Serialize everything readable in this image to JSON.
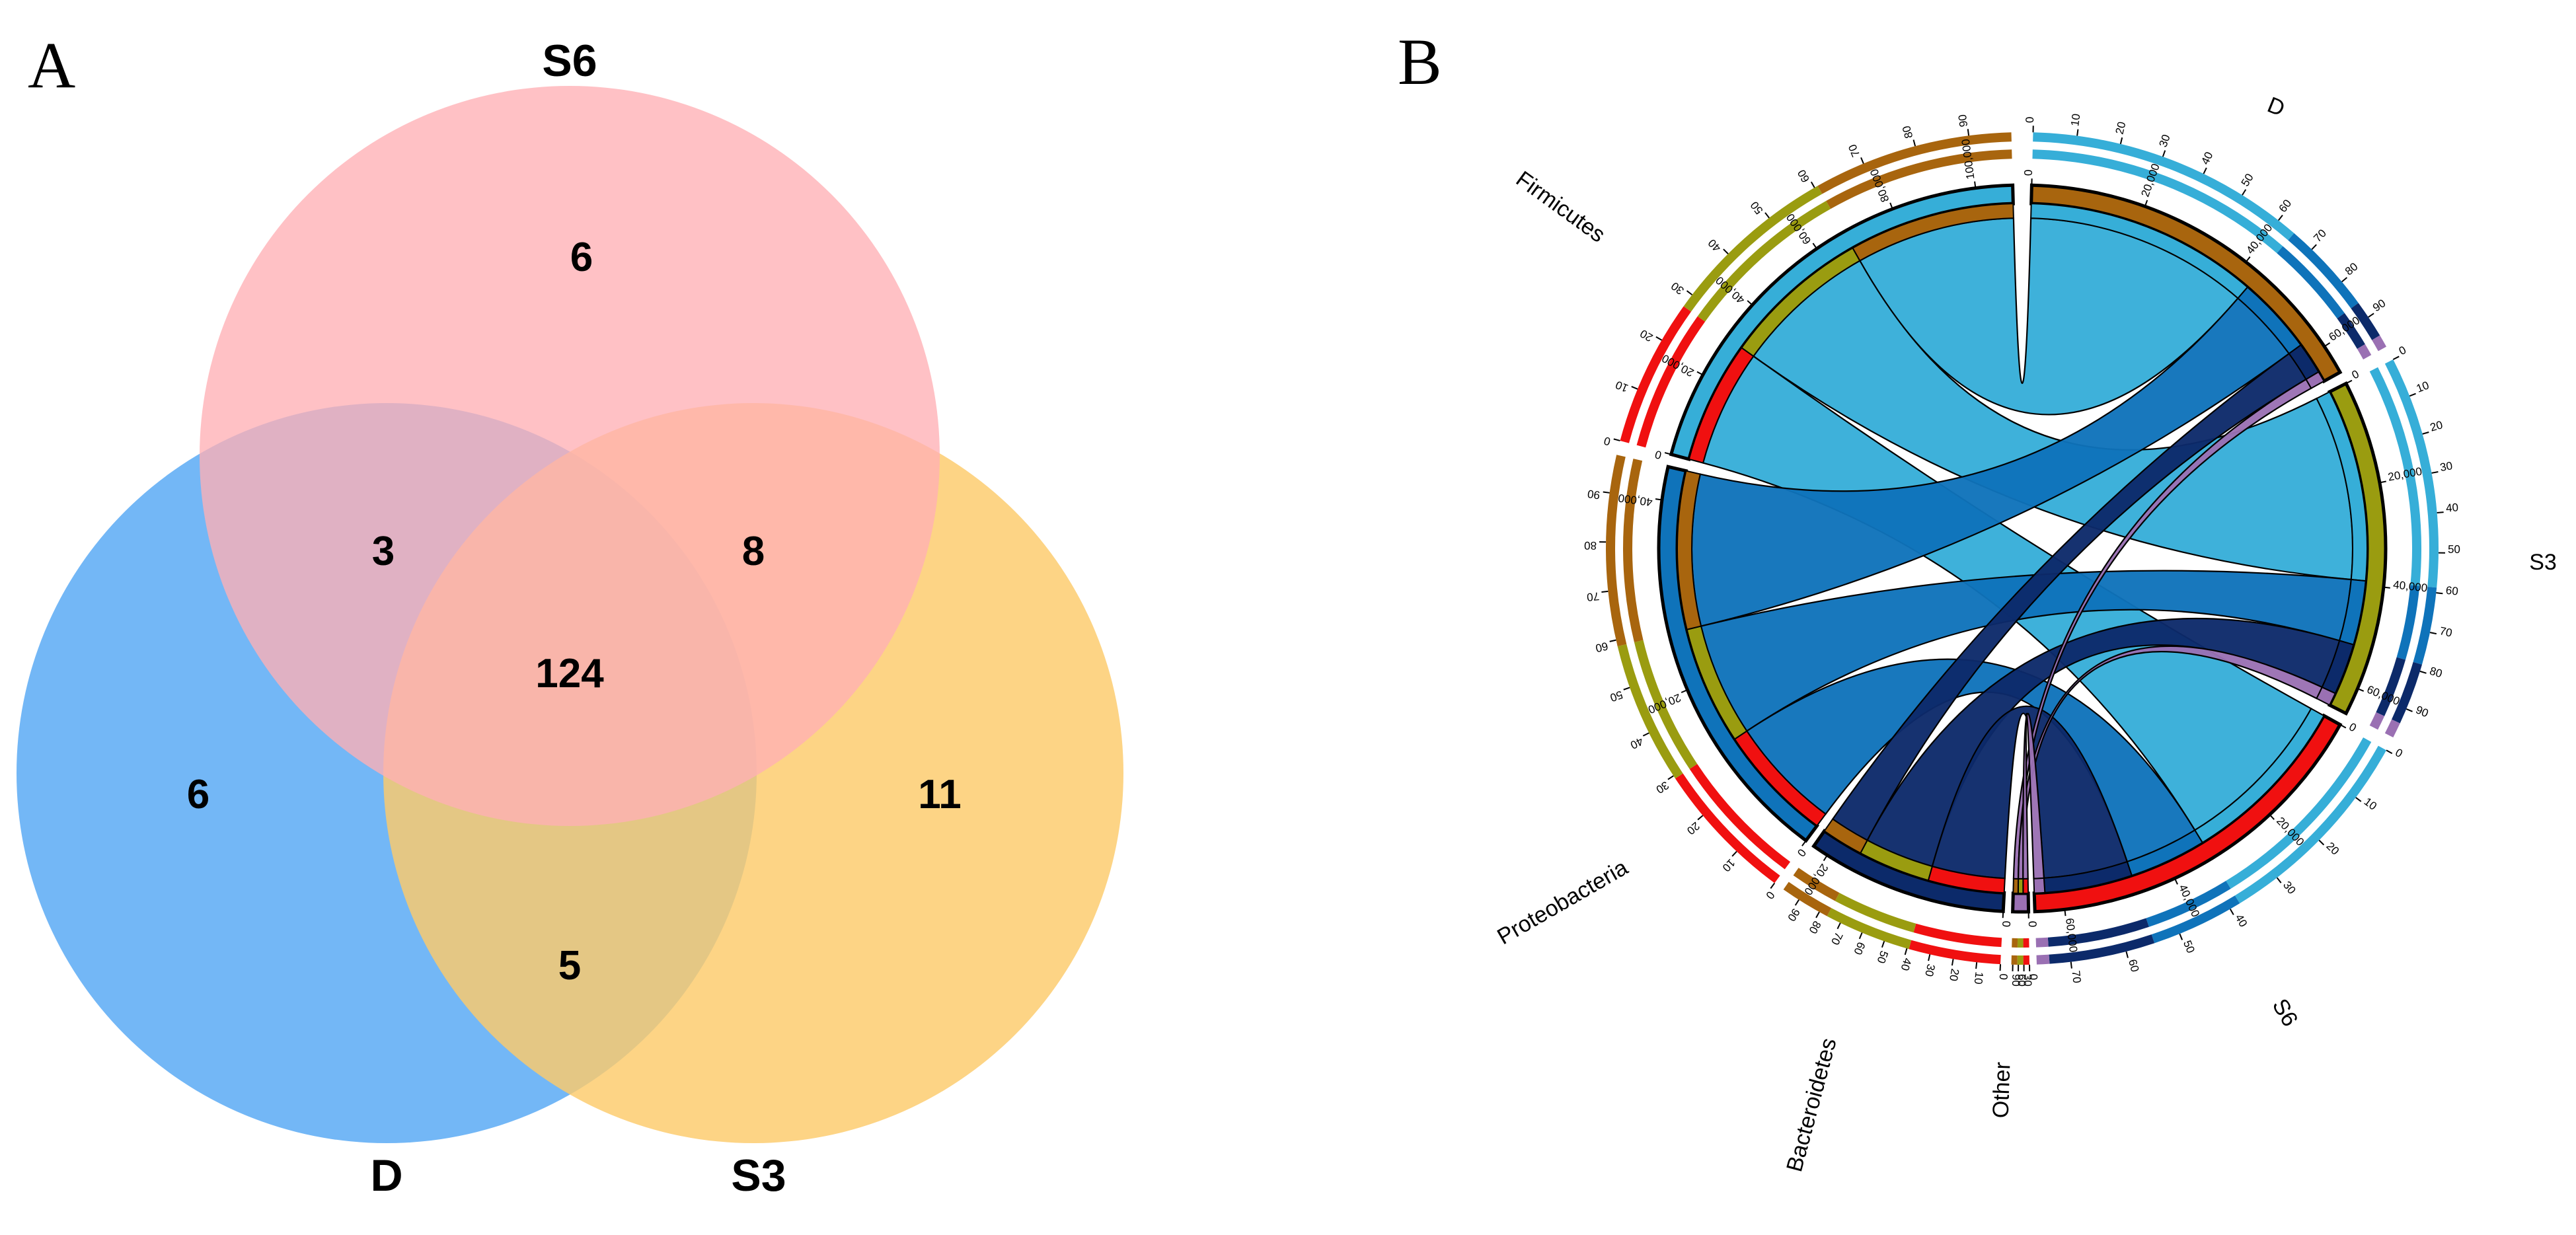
{
  "panel_a": {
    "letter": "A",
    "sets": {
      "s6": "S6",
      "d": "D",
      "s3": "S3"
    },
    "regions": {
      "s6_only": "6",
      "d_only": "6",
      "s3_only": "11",
      "d_s6": "3",
      "s6_s3": "8",
      "d_s3": "5",
      "all": "124"
    },
    "colors": {
      "s6": "#FFB0B5",
      "d": "#5AAAF5",
      "s3": "#FDCB6A"
    }
  },
  "panel_b": {
    "letter": "B",
    "segment_labels": {
      "d": "D",
      "s3": "S3",
      "s6": "S6",
      "firmicutes": "Firmicutes",
      "proteobacteria": "Proteobacteria",
      "bacteroidetes": "Bacteroidetes",
      "other": "Other"
    },
    "colors": {
      "firmicutes": "#36AED8",
      "proteobacteria": "#0F73BA",
      "bacteroidetes": "#0C2A6A",
      "other": "#9A70B3",
      "d": "#A8650E",
      "s3": "#9A9C10",
      "s6": "#F01010"
    },
    "tick_labels": {
      "d_inner": [
        "0",
        "20,000",
        "40,000",
        "60,000"
      ],
      "s3_inner": [
        "0",
        "20,000",
        "40,000",
        "60,000"
      ],
      "s6_inner": [
        "0",
        "20,000",
        "40,000",
        "60,000"
      ],
      "firm_inner": [
        "0",
        "20,000",
        "40,000",
        "60,000",
        "80,000",
        "100,000"
      ],
      "prot_inner": [
        "0",
        "20,000",
        "40,000"
      ],
      "bact_inner": [
        "0",
        "20,000"
      ],
      "other_inner": [
        "0"
      ],
      "d_outer": [
        "0",
        "10",
        "20",
        "30",
        "40",
        "50",
        "60",
        "70",
        "80",
        "90"
      ],
      "s3_outer": [
        "0",
        "10",
        "20",
        "30",
        "40",
        "50",
        "60",
        "70",
        "80",
        "90"
      ],
      "s6_outer": [
        "0",
        "10",
        "20",
        "30",
        "40",
        "50",
        "60",
        "70"
      ],
      "firm_outer": [
        "0",
        "10",
        "20",
        "30",
        "40",
        "50",
        "60",
        "70",
        "80",
        "90"
      ],
      "prot_outer": [
        "0",
        "10",
        "20",
        "30",
        "40",
        "50",
        "60",
        "70",
        "80",
        "90"
      ],
      "bact_outer": [
        "0",
        "10",
        "20",
        "30",
        "40",
        "50",
        "60",
        "70",
        "80",
        "90"
      ],
      "other_outer": [
        "0",
        "30",
        "60",
        "90"
      ]
    }
  }
}
